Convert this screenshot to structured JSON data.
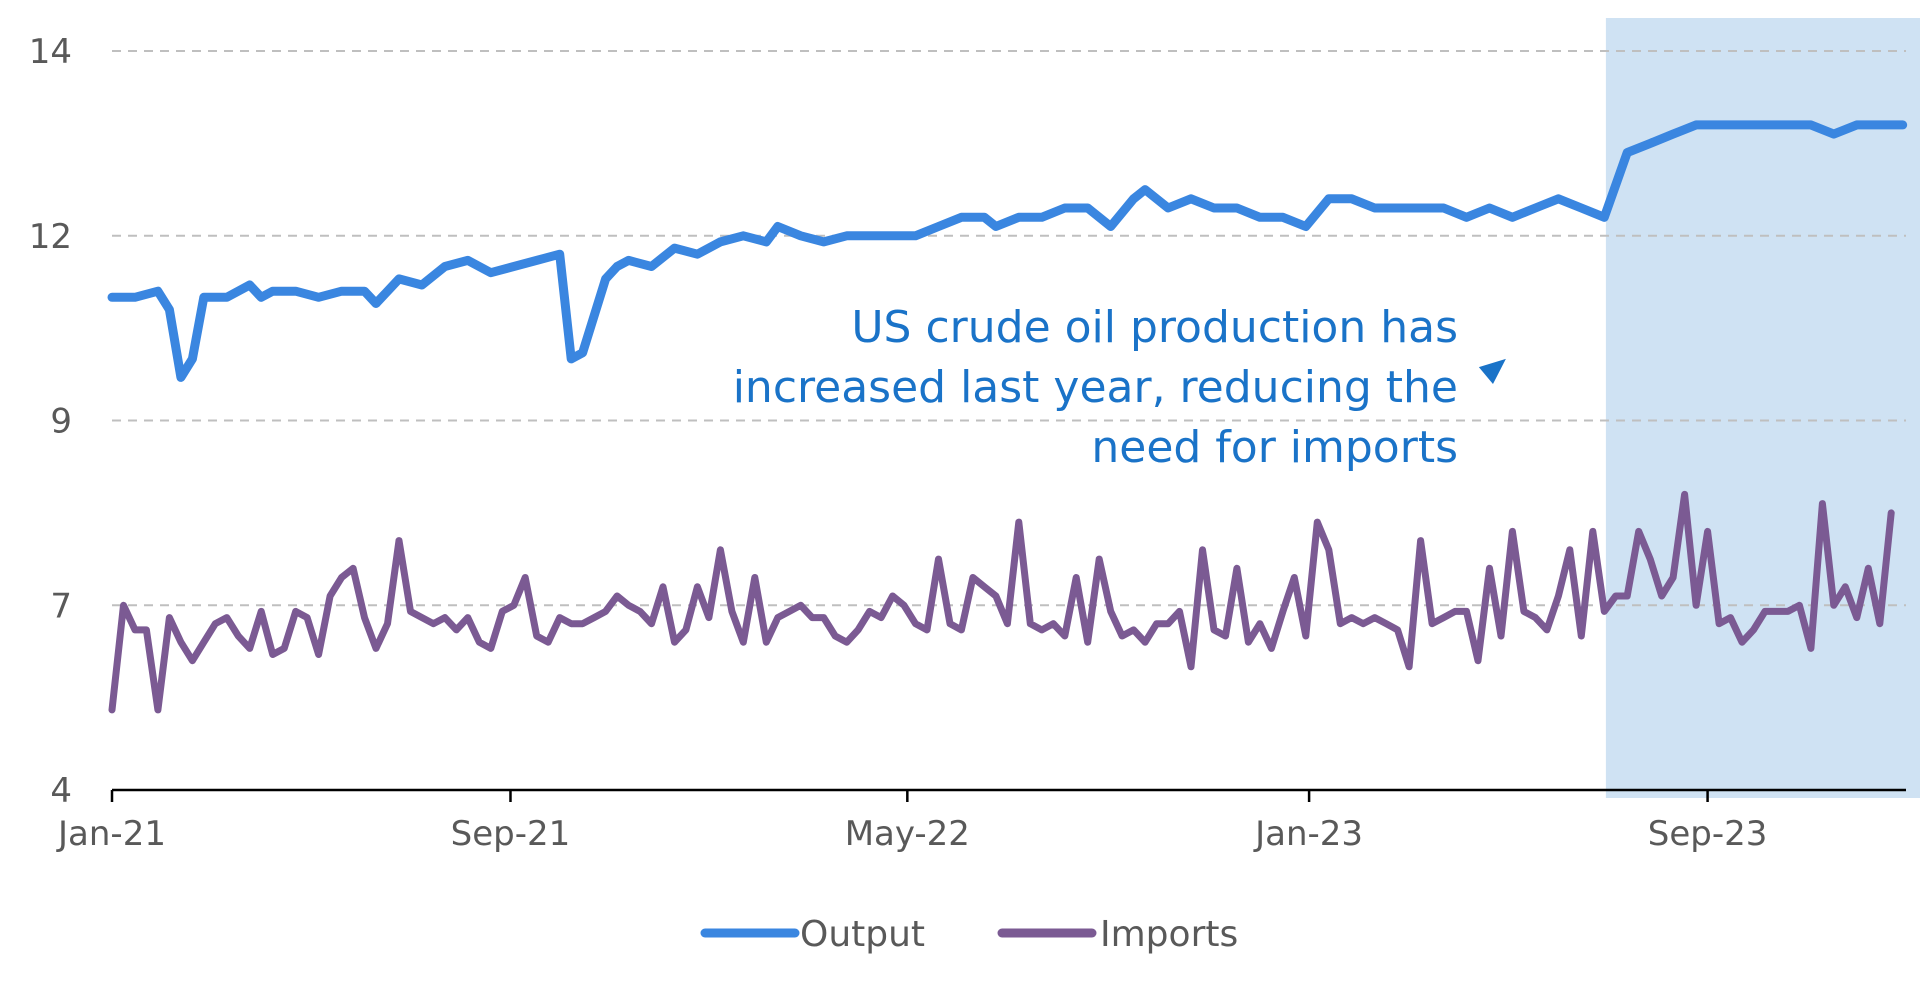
{
  "chart_data": {
    "type": "line",
    "title": "",
    "xlabel": "",
    "ylabel": "",
    "x_range": [
      "2021-01-01",
      "2023-12-31"
    ],
    "y_ticks": [
      {
        "value": 4,
        "label": "4"
      },
      {
        "value": 7,
        "label": "7"
      },
      {
        "value": 9,
        "label": "9"
      },
      {
        "value": 12,
        "label": "12"
      },
      {
        "value": 14,
        "label": "14"
      }
    ],
    "x_ticks": [
      {
        "date": "2021-01-01",
        "label": "Jan-21"
      },
      {
        "date": "2021-09-01",
        "label": "Sep-21"
      },
      {
        "date": "2022-05-01",
        "label": "May-22"
      },
      {
        "date": "2023-01-01",
        "label": "Jan-23"
      },
      {
        "date": "2023-09-01",
        "label": "Sep-23"
      }
    ],
    "grid": "horizontal dashed",
    "legend_position": "bottom",
    "highlight": {
      "from": "2023-07-01",
      "to": "2023-12-31",
      "color": "#cfe2f3"
    },
    "annotation": {
      "lines": [
        "US crude oil production has",
        "increased last year, reducing the",
        "need for imports"
      ],
      "color": "#1a73c8",
      "arrow_to": [
        "2023-05-01",
        10.0
      ]
    },
    "series": [
      {
        "name": "Output",
        "color": "#3a86e0",
        "points": [
          [
            "2021-01-01",
            11.0
          ],
          [
            "2021-01-15",
            11.0
          ],
          [
            "2021-01-29",
            11.1
          ],
          [
            "2021-02-05",
            10.8
          ],
          [
            "2021-02-12",
            9.7
          ],
          [
            "2021-02-19",
            10.0
          ],
          [
            "2021-02-26",
            11.0
          ],
          [
            "2021-03-12",
            11.0
          ],
          [
            "2021-03-26",
            11.2
          ],
          [
            "2021-04-02",
            11.0
          ],
          [
            "2021-04-09",
            11.1
          ],
          [
            "2021-04-23",
            11.1
          ],
          [
            "2021-05-07",
            11.0
          ],
          [
            "2021-05-21",
            11.1
          ],
          [
            "2021-06-04",
            11.1
          ],
          [
            "2021-06-11",
            10.9
          ],
          [
            "2021-06-25",
            11.3
          ],
          [
            "2021-07-09",
            11.2
          ],
          [
            "2021-07-23",
            11.5
          ],
          [
            "2021-08-06",
            11.6
          ],
          [
            "2021-08-20",
            11.4
          ],
          [
            "2021-09-03",
            11.5
          ],
          [
            "2021-09-17",
            11.6
          ],
          [
            "2021-10-01",
            11.7
          ],
          [
            "2021-10-08",
            10.0
          ],
          [
            "2021-10-15",
            10.1
          ],
          [
            "2021-10-29",
            11.3
          ],
          [
            "2021-11-05",
            11.5
          ],
          [
            "2021-11-12",
            11.6
          ],
          [
            "2021-11-26",
            11.5
          ],
          [
            "2021-12-10",
            11.8
          ],
          [
            "2021-12-24",
            11.7
          ],
          [
            "2022-01-07",
            11.9
          ],
          [
            "2022-01-21",
            12.0
          ],
          [
            "2022-02-04",
            11.9
          ],
          [
            "2022-02-11",
            12.1
          ],
          [
            "2022-02-25",
            12.0
          ],
          [
            "2022-03-11",
            11.9
          ],
          [
            "2022-03-25",
            12.0
          ],
          [
            "2022-04-08",
            12.0
          ],
          [
            "2022-04-22",
            12.0
          ],
          [
            "2022-05-06",
            12.0
          ],
          [
            "2022-05-20",
            12.1
          ],
          [
            "2022-06-03",
            12.2
          ],
          [
            "2022-06-17",
            12.2
          ],
          [
            "2022-06-24",
            12.1
          ],
          [
            "2022-07-08",
            12.2
          ],
          [
            "2022-07-22",
            12.2
          ],
          [
            "2022-08-05",
            12.3
          ],
          [
            "2022-08-19",
            12.3
          ],
          [
            "2022-09-02",
            12.1
          ],
          [
            "2022-09-16",
            12.4
          ],
          [
            "2022-09-23",
            12.5
          ],
          [
            "2022-10-07",
            12.3
          ],
          [
            "2022-10-21",
            12.4
          ],
          [
            "2022-11-04",
            12.3
          ],
          [
            "2022-11-18",
            12.3
          ],
          [
            "2022-12-02",
            12.2
          ],
          [
            "2022-12-16",
            12.2
          ],
          [
            "2022-12-30",
            12.1
          ],
          [
            "2023-01-13",
            12.4
          ],
          [
            "2023-01-27",
            12.4
          ],
          [
            "2023-02-10",
            12.3
          ],
          [
            "2023-02-24",
            12.3
          ],
          [
            "2023-03-10",
            12.3
          ],
          [
            "2023-03-24",
            12.3
          ],
          [
            "2023-04-07",
            12.2
          ],
          [
            "2023-04-21",
            12.3
          ],
          [
            "2023-05-05",
            12.2
          ],
          [
            "2023-05-19",
            12.3
          ],
          [
            "2023-06-02",
            12.4
          ],
          [
            "2023-06-16",
            12.3
          ],
          [
            "2023-06-30",
            12.2
          ],
          [
            "2023-07-14",
            12.9
          ],
          [
            "2023-07-28",
            13.0
          ],
          [
            "2023-08-11",
            13.1
          ],
          [
            "2023-08-25",
            13.2
          ],
          [
            "2023-09-08",
            13.2
          ],
          [
            "2023-09-22",
            13.2
          ],
          [
            "2023-10-06",
            13.2
          ],
          [
            "2023-10-20",
            13.2
          ],
          [
            "2023-11-03",
            13.2
          ],
          [
            "2023-11-17",
            13.1
          ],
          [
            "2023-12-01",
            13.2
          ],
          [
            "2023-12-15",
            13.2
          ],
          [
            "2023-12-29",
            13.2
          ]
        ]
      },
      {
        "name": "Imports",
        "color": "#7b5a93",
        "points": [
          [
            "2021-01-01",
            5.3
          ],
          [
            "2021-01-08",
            7.0
          ],
          [
            "2021-01-15",
            6.6
          ],
          [
            "2021-01-22",
            6.6
          ],
          [
            "2021-01-29",
            5.3
          ],
          [
            "2021-02-05",
            6.8
          ],
          [
            "2021-02-12",
            6.4
          ],
          [
            "2021-02-19",
            6.1
          ],
          [
            "2021-02-26",
            6.4
          ],
          [
            "2021-03-05",
            6.7
          ],
          [
            "2021-03-12",
            6.8
          ],
          [
            "2021-03-19",
            6.5
          ],
          [
            "2021-03-26",
            6.3
          ],
          [
            "2021-04-02",
            6.9
          ],
          [
            "2021-04-09",
            6.2
          ],
          [
            "2021-04-16",
            6.3
          ],
          [
            "2021-04-23",
            6.9
          ],
          [
            "2021-04-30",
            6.8
          ],
          [
            "2021-05-07",
            6.2
          ],
          [
            "2021-05-14",
            7.1
          ],
          [
            "2021-05-21",
            7.3
          ],
          [
            "2021-05-28",
            7.4
          ],
          [
            "2021-06-04",
            6.8
          ],
          [
            "2021-06-11",
            6.3
          ],
          [
            "2021-06-18",
            6.7
          ],
          [
            "2021-06-25",
            7.7
          ],
          [
            "2021-07-02",
            6.9
          ],
          [
            "2021-07-09",
            6.8
          ],
          [
            "2021-07-16",
            6.7
          ],
          [
            "2021-07-23",
            6.8
          ],
          [
            "2021-07-30",
            6.6
          ],
          [
            "2021-08-06",
            6.8
          ],
          [
            "2021-08-13",
            6.4
          ],
          [
            "2021-08-20",
            6.3
          ],
          [
            "2021-08-27",
            6.9
          ],
          [
            "2021-09-03",
            7.0
          ],
          [
            "2021-09-10",
            7.3
          ],
          [
            "2021-09-17",
            6.5
          ],
          [
            "2021-09-24",
            6.4
          ],
          [
            "2021-10-01",
            6.8
          ],
          [
            "2021-10-08",
            6.7
          ],
          [
            "2021-10-15",
            6.7
          ],
          [
            "2021-10-22",
            6.8
          ],
          [
            "2021-10-29",
            6.9
          ],
          [
            "2021-11-05",
            7.1
          ],
          [
            "2021-11-12",
            7.0
          ],
          [
            "2021-11-19",
            6.9
          ],
          [
            "2021-11-26",
            6.7
          ],
          [
            "2021-12-03",
            7.2
          ],
          [
            "2021-12-10",
            6.4
          ],
          [
            "2021-12-17",
            6.6
          ],
          [
            "2021-12-24",
            7.2
          ],
          [
            "2021-12-31",
            6.8
          ],
          [
            "2022-01-07",
            7.6
          ],
          [
            "2022-01-14",
            6.9
          ],
          [
            "2022-01-21",
            6.4
          ],
          [
            "2022-01-28",
            7.3
          ],
          [
            "2022-02-04",
            6.4
          ],
          [
            "2022-02-11",
            6.8
          ],
          [
            "2022-02-18",
            6.9
          ],
          [
            "2022-02-25",
            7.0
          ],
          [
            "2022-03-04",
            6.8
          ],
          [
            "2022-03-11",
            6.8
          ],
          [
            "2022-03-18",
            6.5
          ],
          [
            "2022-03-25",
            6.4
          ],
          [
            "2022-04-01",
            6.6
          ],
          [
            "2022-04-08",
            6.9
          ],
          [
            "2022-04-15",
            6.8
          ],
          [
            "2022-04-22",
            7.1
          ],
          [
            "2022-04-29",
            7.0
          ],
          [
            "2022-05-06",
            6.7
          ],
          [
            "2022-05-13",
            6.6
          ],
          [
            "2022-05-20",
            7.5
          ],
          [
            "2022-05-27",
            6.7
          ],
          [
            "2022-06-03",
            6.6
          ],
          [
            "2022-06-10",
            7.3
          ],
          [
            "2022-06-17",
            7.2
          ],
          [
            "2022-06-24",
            7.1
          ],
          [
            "2022-07-01",
            6.7
          ],
          [
            "2022-07-08",
            7.9
          ],
          [
            "2022-07-15",
            6.7
          ],
          [
            "2022-07-22",
            6.6
          ],
          [
            "2022-07-29",
            6.7
          ],
          [
            "2022-08-05",
            6.5
          ],
          [
            "2022-08-12",
            7.3
          ],
          [
            "2022-08-19",
            6.4
          ],
          [
            "2022-08-26",
            7.5
          ],
          [
            "2022-09-02",
            6.9
          ],
          [
            "2022-09-09",
            6.5
          ],
          [
            "2022-09-16",
            6.6
          ],
          [
            "2022-09-23",
            6.4
          ],
          [
            "2022-09-30",
            6.7
          ],
          [
            "2022-10-07",
            6.7
          ],
          [
            "2022-10-14",
            6.9
          ],
          [
            "2022-10-21",
            6.0
          ],
          [
            "2022-10-28",
            7.6
          ],
          [
            "2022-11-04",
            6.6
          ],
          [
            "2022-11-11",
            6.5
          ],
          [
            "2022-11-18",
            7.4
          ],
          [
            "2022-11-25",
            6.4
          ],
          [
            "2022-12-02",
            6.7
          ],
          [
            "2022-12-09",
            6.3
          ],
          [
            "2022-12-16",
            6.9
          ],
          [
            "2022-12-23",
            7.3
          ],
          [
            "2022-12-30",
            6.5
          ],
          [
            "2023-01-06",
            7.9
          ],
          [
            "2023-01-13",
            7.6
          ],
          [
            "2023-01-20",
            6.7
          ],
          [
            "2023-01-27",
            6.8
          ],
          [
            "2023-02-03",
            6.7
          ],
          [
            "2023-02-10",
            6.8
          ],
          [
            "2023-02-17",
            6.7
          ],
          [
            "2023-02-24",
            6.6
          ],
          [
            "2023-03-03",
            6.0
          ],
          [
            "2023-03-10",
            7.7
          ],
          [
            "2023-03-17",
            6.7
          ],
          [
            "2023-03-24",
            6.8
          ],
          [
            "2023-03-31",
            6.9
          ],
          [
            "2023-04-07",
            6.9
          ],
          [
            "2023-04-14",
            6.1
          ],
          [
            "2023-04-21",
            7.4
          ],
          [
            "2023-04-28",
            6.5
          ],
          [
            "2023-05-05",
            7.8
          ],
          [
            "2023-05-12",
            6.9
          ],
          [
            "2023-05-19",
            6.8
          ],
          [
            "2023-05-26",
            6.6
          ],
          [
            "2023-06-02",
            7.1
          ],
          [
            "2023-06-09",
            7.6
          ],
          [
            "2023-06-16",
            6.5
          ],
          [
            "2023-06-23",
            7.8
          ],
          [
            "2023-06-30",
            6.9
          ],
          [
            "2023-07-07",
            7.1
          ],
          [
            "2023-07-14",
            7.1
          ],
          [
            "2023-07-21",
            7.8
          ],
          [
            "2023-07-28",
            7.5
          ],
          [
            "2023-08-04",
            7.1
          ],
          [
            "2023-08-11",
            7.3
          ],
          [
            "2023-08-18",
            8.2
          ],
          [
            "2023-08-25",
            7.0
          ],
          [
            "2023-09-01",
            7.8
          ],
          [
            "2023-09-08",
            6.7
          ],
          [
            "2023-09-15",
            6.8
          ],
          [
            "2023-09-22",
            6.4
          ],
          [
            "2023-09-29",
            6.6
          ],
          [
            "2023-10-06",
            6.9
          ],
          [
            "2023-10-13",
            6.9
          ],
          [
            "2023-10-20",
            6.9
          ],
          [
            "2023-10-27",
            7.0
          ],
          [
            "2023-11-03",
            6.3
          ],
          [
            "2023-11-10",
            8.1
          ],
          [
            "2023-11-17",
            7.0
          ],
          [
            "2023-11-24",
            7.2
          ],
          [
            "2023-12-01",
            6.8
          ],
          [
            "2023-12-08",
            7.4
          ],
          [
            "2023-12-15",
            6.7
          ],
          [
            "2023-12-22",
            8.0
          ]
        ]
      }
    ]
  }
}
